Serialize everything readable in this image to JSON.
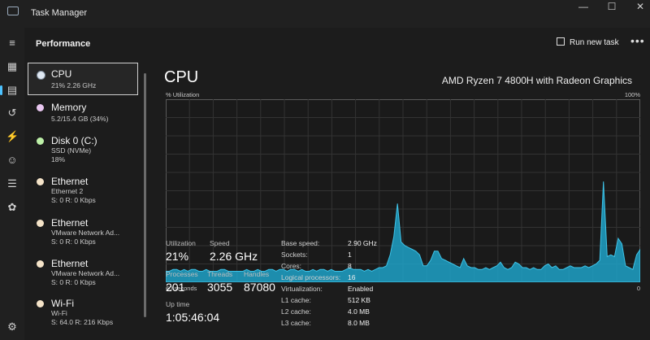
{
  "window": {
    "title": "Task Manager",
    "minimize": "—",
    "maximize": "☐",
    "close": "✕"
  },
  "header": {
    "title": "Performance",
    "run_new_task": "Run new task",
    "more": "•••"
  },
  "nav": [
    "menu-icon",
    "processes-icon",
    "performance-icon",
    "app-history-icon",
    "startup-icon",
    "users-icon",
    "details-icon",
    "services-icon",
    "settings-icon"
  ],
  "devices": [
    {
      "name": "CPU",
      "lines": [
        "21%  2.26 GHz"
      ],
      "dot": "#dfe8f2"
    },
    {
      "name": "Memory",
      "lines": [
        "5.2/15.4 GB (34%)"
      ],
      "dot": "#e8c6f0"
    },
    {
      "name": "Disk 0 (C:)",
      "lines": [
        "SSD (NVMe)",
        "18%"
      ],
      "dot": "#bdf0a8"
    },
    {
      "name": "Ethernet",
      "lines": [
        "Ethernet 2",
        "S: 0 R: 0 Kbps"
      ],
      "dot": "#f4e3c8"
    },
    {
      "name": "Ethernet",
      "lines": [
        "VMware Network Ad...",
        "S: 0 R: 0 Kbps"
      ],
      "dot": "#f4e3c8"
    },
    {
      "name": "Ethernet",
      "lines": [
        "VMware Network Ad...",
        "S: 0 R: 0 Kbps"
      ],
      "dot": "#f4e3c8"
    },
    {
      "name": "Wi-Fi",
      "lines": [
        "Wi-Fi",
        "S: 64.0 R: 216 Kbps"
      ],
      "dot": "#f4e3c8"
    }
  ],
  "main": {
    "title": "CPU",
    "processor": "AMD Ryzen 7 4800H with Radeon Graphics",
    "util_label": "% Utilization",
    "max_label": "100%",
    "time_label": "60 seconds",
    "min_label": "0",
    "graph_color": "#1fa2c8",
    "utilization_history": [
      6,
      6,
      7,
      7,
      6,
      7,
      6,
      7,
      7,
      6,
      6,
      7,
      6,
      6,
      6,
      7,
      7,
      6,
      6,
      6,
      6,
      6,
      7,
      6,
      6,
      7,
      6,
      6,
      7,
      7,
      6,
      7,
      7,
      6,
      7,
      7,
      6,
      7,
      6,
      6,
      7,
      6,
      7,
      7,
      6,
      7,
      6,
      6,
      6,
      7,
      8,
      7,
      7,
      7,
      6,
      7,
      6,
      7,
      8,
      8,
      9,
      15,
      25,
      43,
      22,
      20,
      19,
      18,
      17,
      15,
      9,
      9,
      12,
      17,
      17,
      13,
      12,
      11,
      10,
      9,
      8,
      13,
      9,
      8,
      8,
      7,
      7,
      8,
      7,
      8,
      9,
      11,
      8,
      7,
      8,
      11,
      10,
      8,
      8,
      7,
      8,
      7,
      7,
      9,
      10,
      8,
      9,
      7,
      7,
      8,
      9,
      8,
      8,
      8,
      9,
      8,
      9,
      10,
      12,
      55,
      14,
      15,
      14,
      24,
      21,
      9,
      8,
      7,
      15,
      18
    ]
  },
  "stats": {
    "utilization": {
      "label": "Utilization",
      "value": "21%"
    },
    "speed": {
      "label": "Speed",
      "value": "2.26 GHz"
    },
    "processes": {
      "label": "Processes",
      "value": "201"
    },
    "threads": {
      "label": "Threads",
      "value": "3055"
    },
    "handles": {
      "label": "Handles",
      "value": "87080"
    },
    "uptime": {
      "label": "Up time",
      "value": "1:05:46:04"
    }
  },
  "specs": [
    [
      "Base speed:",
      "2.90 GHz"
    ],
    [
      "Sockets:",
      "1"
    ],
    [
      "Cores:",
      "8"
    ],
    [
      "Logical processors:",
      "16"
    ],
    [
      "Virtualization:",
      "Enabled"
    ],
    [
      "L1 cache:",
      "512 KB"
    ],
    [
      "L2 cache:",
      "4.0 MB"
    ],
    [
      "L3 cache:",
      "8.0 MB"
    ]
  ]
}
